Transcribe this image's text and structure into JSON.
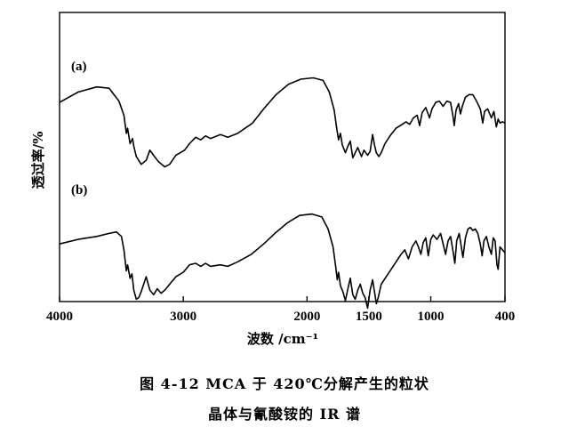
{
  "chart_data": {
    "type": "line",
    "xlabel": "波数 /cm⁻¹",
    "ylabel": "透过率/%",
    "xlim": [
      4000,
      400
    ],
    "x_reversed": true,
    "x_ticks": [
      4000,
      3000,
      2000,
      1500,
      1000,
      400
    ],
    "x_tick_labels": [
      "4000",
      "3000",
      "2000",
      "1500",
      "1000",
      "400"
    ],
    "y_ticks": [],
    "grid": false,
    "legend": "none",
    "line_color": "#000000",
    "series": [
      {
        "name": "(a)",
        "points": [
          [
            4000,
            0.62
          ],
          [
            3850,
            0.7
          ],
          [
            3700,
            0.74
          ],
          [
            3600,
            0.73
          ],
          [
            3520,
            0.63
          ],
          [
            3480,
            0.52
          ],
          [
            3460,
            0.38
          ],
          [
            3450,
            0.42
          ],
          [
            3430,
            0.3
          ],
          [
            3410,
            0.34
          ],
          [
            3400,
            0.28
          ],
          [
            3380,
            0.2
          ],
          [
            3340,
            0.14
          ],
          [
            3300,
            0.17
          ],
          [
            3270,
            0.25
          ],
          [
            3240,
            0.21
          ],
          [
            3200,
            0.16
          ],
          [
            3150,
            0.12
          ],
          [
            3110,
            0.14
          ],
          [
            3060,
            0.21
          ],
          [
            2990,
            0.25
          ],
          [
            2950,
            0.3
          ],
          [
            2900,
            0.35
          ],
          [
            2860,
            0.33
          ],
          [
            2820,
            0.36
          ],
          [
            2780,
            0.34
          ],
          [
            2700,
            0.37
          ],
          [
            2640,
            0.35
          ],
          [
            2560,
            0.38
          ],
          [
            2440,
            0.46
          ],
          [
            2350,
            0.57
          ],
          [
            2250,
            0.68
          ],
          [
            2150,
            0.76
          ],
          [
            2050,
            0.8
          ],
          [
            1950,
            0.81
          ],
          [
            1870,
            0.79
          ],
          [
            1820,
            0.7
          ],
          [
            1780,
            0.56
          ],
          [
            1760,
            0.42
          ],
          [
            1745,
            0.33
          ],
          [
            1730,
            0.38
          ],
          [
            1715,
            0.29
          ],
          [
            1690,
            0.23
          ],
          [
            1670,
            0.28
          ],
          [
            1650,
            0.32
          ],
          [
            1630,
            0.19
          ],
          [
            1610,
            0.23
          ],
          [
            1590,
            0.27
          ],
          [
            1560,
            0.2
          ],
          [
            1540,
            0.25
          ],
          [
            1510,
            0.21
          ],
          [
            1490,
            0.24
          ],
          [
            1470,
            0.37
          ],
          [
            1455,
            0.29
          ],
          [
            1440,
            0.23
          ],
          [
            1420,
            0.2
          ],
          [
            1400,
            0.23
          ],
          [
            1370,
            0.3
          ],
          [
            1330,
            0.36
          ],
          [
            1280,
            0.42
          ],
          [
            1230,
            0.45
          ],
          [
            1200,
            0.47
          ],
          [
            1170,
            0.45
          ],
          [
            1140,
            0.5
          ],
          [
            1110,
            0.52
          ],
          [
            1090,
            0.44
          ],
          [
            1070,
            0.54
          ],
          [
            1040,
            0.58
          ],
          [
            1010,
            0.5
          ],
          [
            990,
            0.57
          ],
          [
            960,
            0.62
          ],
          [
            930,
            0.63
          ],
          [
            900,
            0.59
          ],
          [
            870,
            0.63
          ],
          [
            840,
            0.62
          ],
          [
            820,
            0.51
          ],
          [
            810,
            0.44
          ],
          [
            795,
            0.56
          ],
          [
            775,
            0.61
          ],
          [
            760,
            0.53
          ],
          [
            745,
            0.59
          ],
          [
            720,
            0.66
          ],
          [
            690,
            0.68
          ],
          [
            660,
            0.68
          ],
          [
            630,
            0.63
          ],
          [
            600,
            0.57
          ],
          [
            580,
            0.46
          ],
          [
            565,
            0.55
          ],
          [
            540,
            0.57
          ],
          [
            510,
            0.5
          ],
          [
            490,
            0.55
          ],
          [
            470,
            0.43
          ],
          [
            455,
            0.49
          ],
          [
            440,
            0.46
          ],
          [
            420,
            0.47
          ],
          [
            400,
            0.46
          ]
        ]
      },
      {
        "name": "(b)",
        "points": [
          [
            4000,
            0.38
          ],
          [
            3850,
            0.41
          ],
          [
            3700,
            0.43
          ],
          [
            3600,
            0.45
          ],
          [
            3540,
            0.46
          ],
          [
            3500,
            0.43
          ],
          [
            3480,
            0.34
          ],
          [
            3460,
            0.2
          ],
          [
            3450,
            0.24
          ],
          [
            3430,
            0.15
          ],
          [
            3415,
            0.18
          ],
          [
            3400,
            0.07
          ],
          [
            3380,
            0.01
          ],
          [
            3360,
            0.02
          ],
          [
            3340,
            0.06
          ],
          [
            3300,
            0.16
          ],
          [
            3270,
            0.07
          ],
          [
            3240,
            0.04
          ],
          [
            3210,
            0.08
          ],
          [
            3180,
            0.05
          ],
          [
            3150,
            0.07
          ],
          [
            3100,
            0.12
          ],
          [
            3060,
            0.16
          ],
          [
            3000,
            0.19
          ],
          [
            2950,
            0.24
          ],
          [
            2900,
            0.25
          ],
          [
            2860,
            0.23
          ],
          [
            2820,
            0.25
          ],
          [
            2780,
            0.23
          ],
          [
            2700,
            0.24
          ],
          [
            2640,
            0.23
          ],
          [
            2560,
            0.26
          ],
          [
            2450,
            0.31
          ],
          [
            2350,
            0.38
          ],
          [
            2260,
            0.45
          ],
          [
            2160,
            0.52
          ],
          [
            2060,
            0.57
          ],
          [
            1960,
            0.58
          ],
          [
            1880,
            0.56
          ],
          [
            1830,
            0.48
          ],
          [
            1790,
            0.36
          ],
          [
            1770,
            0.24
          ],
          [
            1755,
            0.14
          ],
          [
            1745,
            0.19
          ],
          [
            1730,
            0.1
          ],
          [
            1710,
            0.06
          ],
          [
            1690,
            0.0
          ],
          [
            1670,
            0.08
          ],
          [
            1650,
            0.15
          ],
          [
            1630,
            0.04
          ],
          [
            1610,
            0.01
          ],
          [
            1590,
            0.07
          ],
          [
            1570,
            0.11
          ],
          [
            1550,
            0.05
          ],
          [
            1530,
            0.02
          ],
          [
            1510,
            -0.05
          ],
          [
            1490,
            0.07
          ],
          [
            1470,
            0.14
          ],
          [
            1455,
            0.06
          ],
          [
            1440,
            -0.02
          ],
          [
            1425,
            0.02
          ],
          [
            1400,
            0.11
          ],
          [
            1360,
            0.16
          ],
          [
            1320,
            0.21
          ],
          [
            1280,
            0.26
          ],
          [
            1240,
            0.31
          ],
          [
            1210,
            0.34
          ],
          [
            1180,
            0.28
          ],
          [
            1150,
            0.36
          ],
          [
            1120,
            0.4
          ],
          [
            1100,
            0.36
          ],
          [
            1080,
            0.31
          ],
          [
            1060,
            0.39
          ],
          [
            1040,
            0.42
          ],
          [
            1020,
            0.3
          ],
          [
            1000,
            0.41
          ],
          [
            980,
            0.44
          ],
          [
            950,
            0.41
          ],
          [
            920,
            0.45
          ],
          [
            900,
            0.38
          ],
          [
            880,
            0.31
          ],
          [
            860,
            0.4
          ],
          [
            840,
            0.43
          ],
          [
            820,
            0.33
          ],
          [
            805,
            0.25
          ],
          [
            790,
            0.4
          ],
          [
            770,
            0.45
          ],
          [
            755,
            0.37
          ],
          [
            740,
            0.29
          ],
          [
            720,
            0.42
          ],
          [
            700,
            0.48
          ],
          [
            680,
            0.49
          ],
          [
            660,
            0.47
          ],
          [
            640,
            0.48
          ],
          [
            620,
            0.45
          ],
          [
            600,
            0.38
          ],
          [
            585,
            0.3
          ],
          [
            570,
            0.4
          ],
          [
            550,
            0.43
          ],
          [
            530,
            0.36
          ],
          [
            510,
            0.31
          ],
          [
            495,
            0.42
          ],
          [
            480,
            0.4
          ],
          [
            465,
            0.24
          ],
          [
            455,
            0.21
          ],
          [
            440,
            0.36
          ],
          [
            420,
            0.34
          ],
          [
            400,
            0.32
          ]
        ]
      }
    ]
  },
  "caption": {
    "line1": "图 4-12   MCA 于 420℃分解产生的粒状",
    "line2": "晶体与氰酸铵的 IR 谱"
  }
}
